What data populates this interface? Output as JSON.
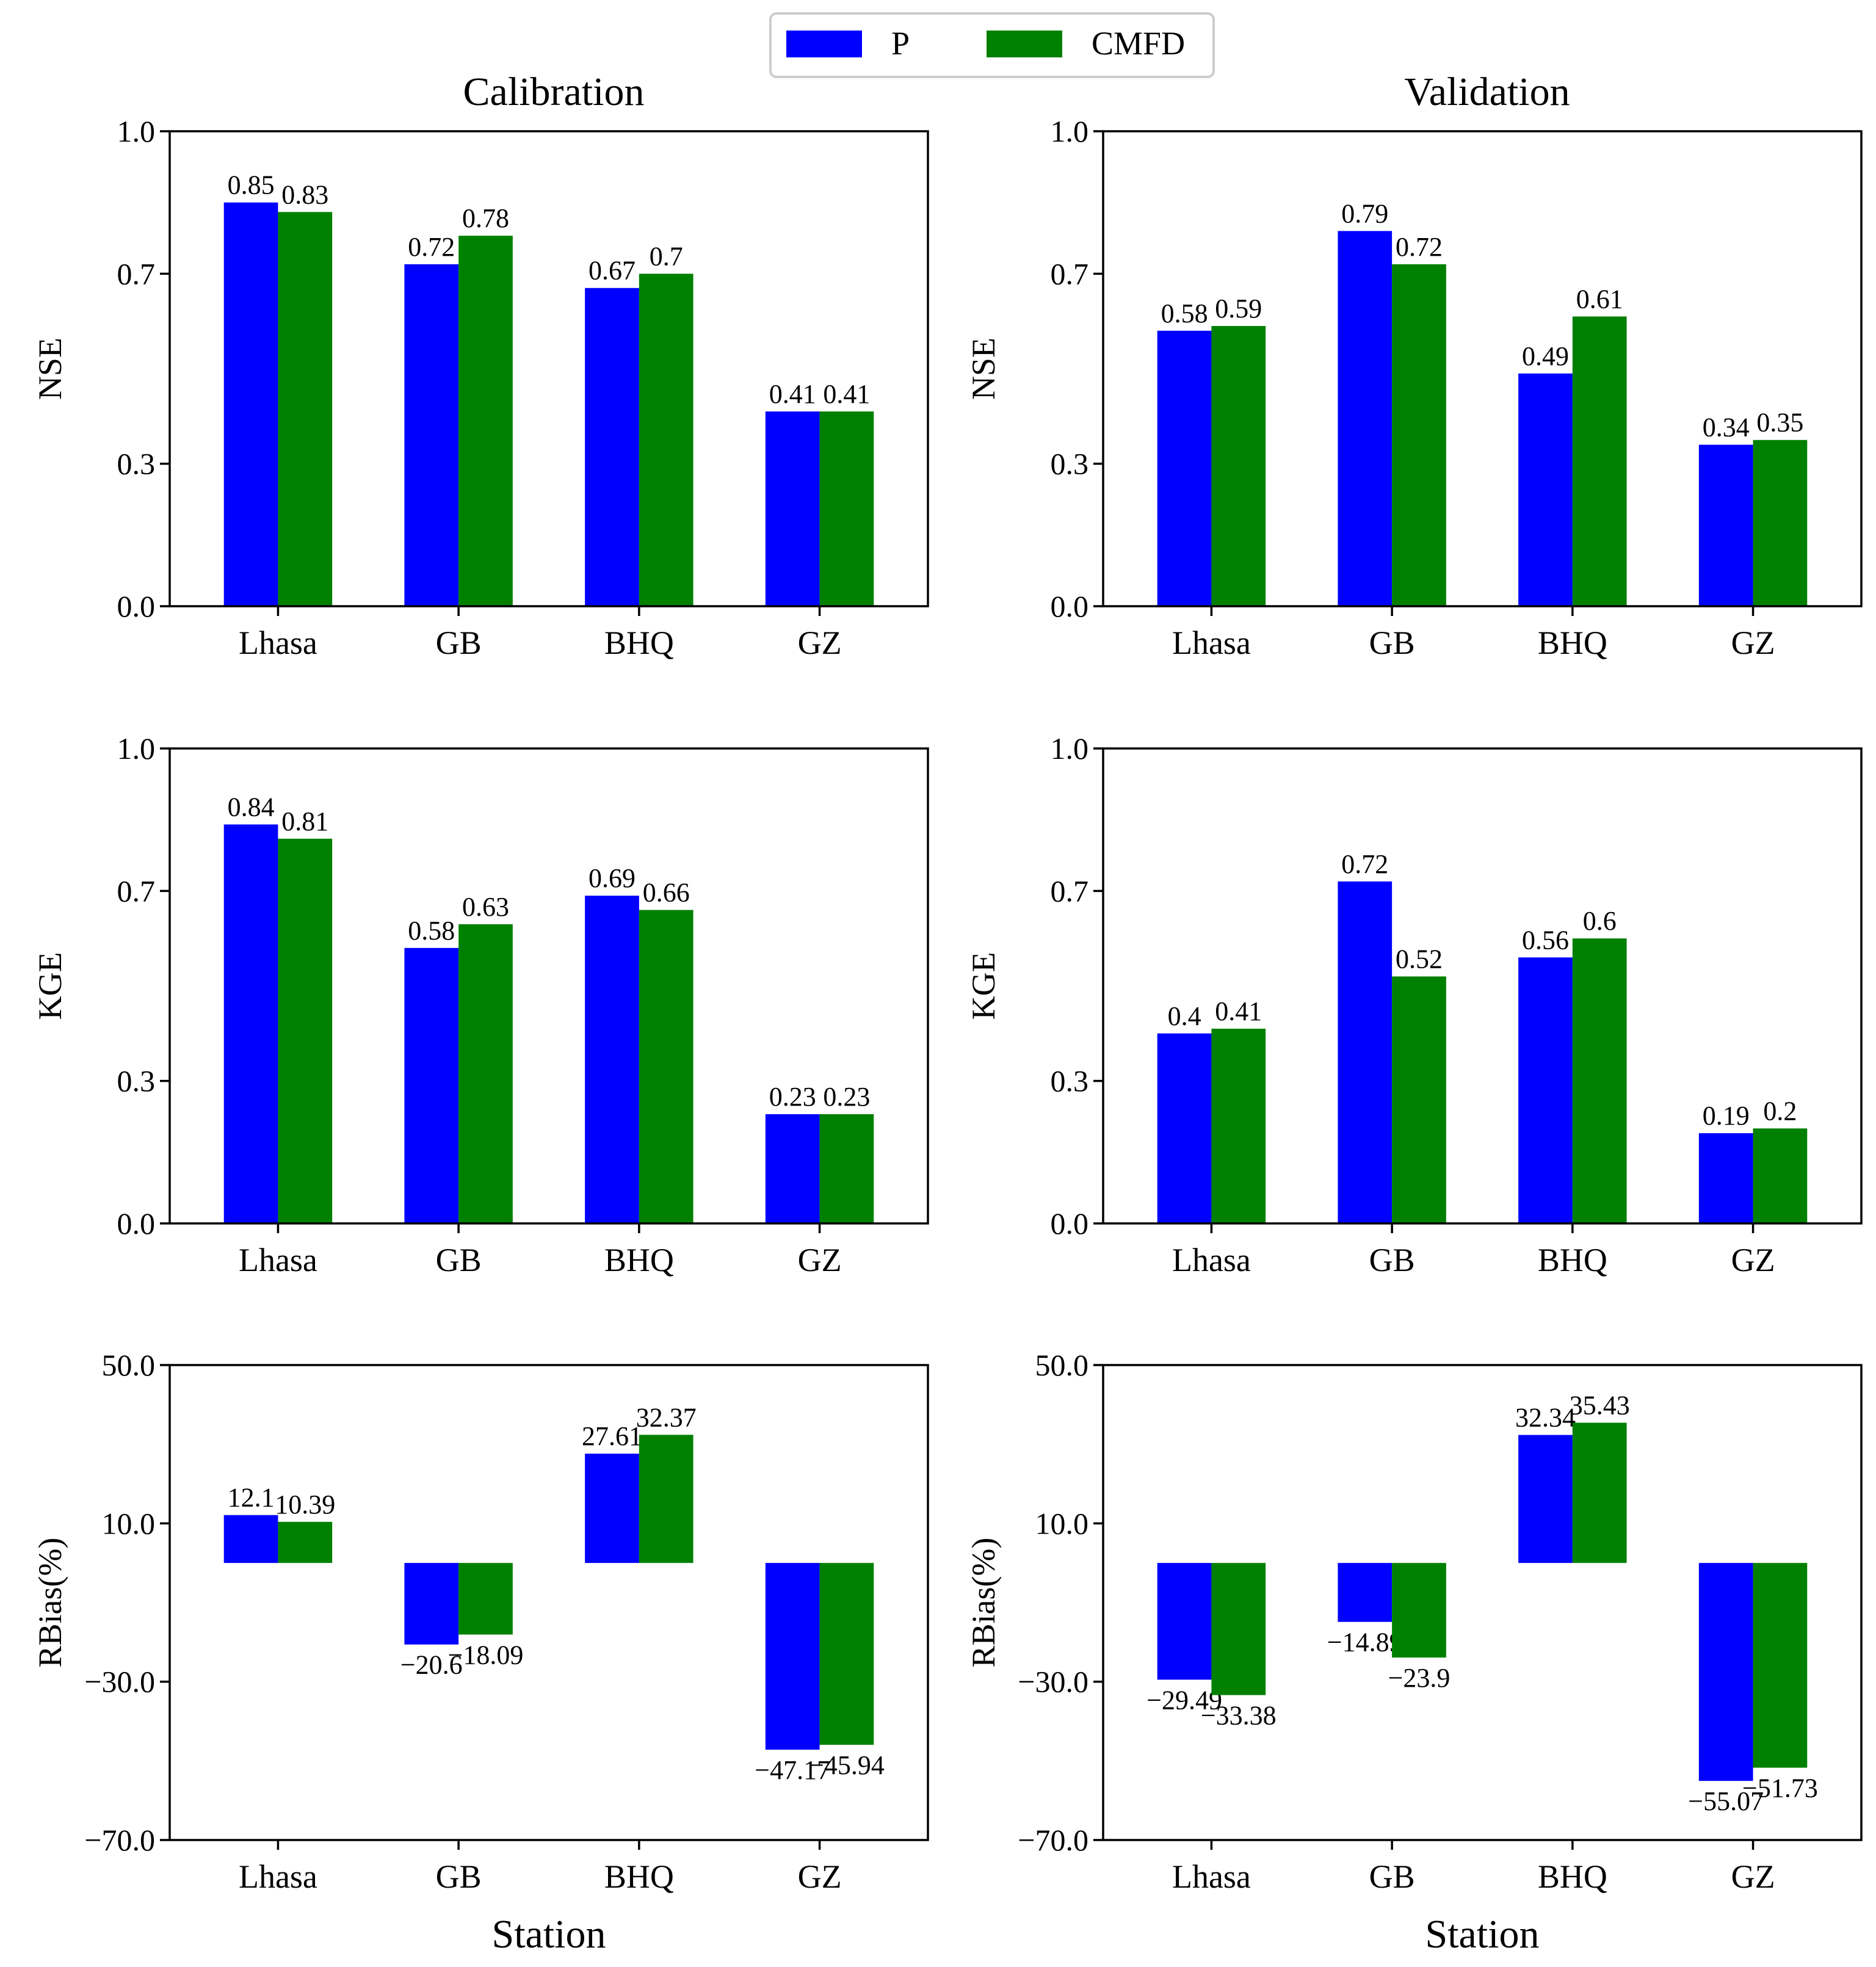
{
  "legend": {
    "entries": [
      {
        "label": "P",
        "color": "#0000ff"
      },
      {
        "label": "CMFD",
        "color": "#008000"
      }
    ]
  },
  "columns": {
    "left_title": "Calibration",
    "right_title": "Validation"
  },
  "x_axis_label": "Station",
  "chart_data": [
    {
      "id": "cal-nse",
      "type": "bar",
      "column_title": "Calibration",
      "categories": [
        "Lhasa",
        "GB",
        "BHQ",
        "GZ"
      ],
      "series": [
        {
          "name": "P",
          "values": [
            0.85,
            0.72,
            0.67,
            0.41
          ],
          "labels": [
            "0.85",
            "0.72",
            "0.67",
            "0.41"
          ]
        },
        {
          "name": "CMFD",
          "values": [
            0.83,
            0.78,
            0.7,
            0.41
          ],
          "labels": [
            "0.83",
            "0.78",
            "0.7",
            "0.41"
          ]
        }
      ],
      "ylabel": "NSE",
      "xlabel": "",
      "ylim": [
        0.0,
        1.0
      ],
      "yticks": [
        0.0,
        0.3,
        0.7,
        1.0
      ],
      "ytick_labels": [
        "0.0",
        "0.3",
        "0.7",
        "1.0"
      ]
    },
    {
      "id": "val-nse",
      "type": "bar",
      "column_title": "Validation",
      "categories": [
        "Lhasa",
        "GB",
        "BHQ",
        "GZ"
      ],
      "series": [
        {
          "name": "P",
          "values": [
            0.58,
            0.79,
            0.49,
            0.34
          ],
          "labels": [
            "0.58",
            "0.79",
            "0.49",
            "0.34"
          ]
        },
        {
          "name": "CMFD",
          "values": [
            0.59,
            0.72,
            0.61,
            0.35
          ],
          "labels": [
            "0.59",
            "0.72",
            "0.61",
            "0.35"
          ]
        }
      ],
      "ylabel": "NSE",
      "xlabel": "",
      "ylim": [
        0.0,
        1.0
      ],
      "yticks": [
        0.0,
        0.3,
        0.7,
        1.0
      ],
      "ytick_labels": [
        "0.0",
        "0.3",
        "0.7",
        "1.0"
      ]
    },
    {
      "id": "cal-kge",
      "type": "bar",
      "categories": [
        "Lhasa",
        "GB",
        "BHQ",
        "GZ"
      ],
      "series": [
        {
          "name": "P",
          "values": [
            0.84,
            0.58,
            0.69,
            0.23
          ],
          "labels": [
            "0.84",
            "0.58",
            "0.69",
            "0.23"
          ]
        },
        {
          "name": "CMFD",
          "values": [
            0.81,
            0.63,
            0.66,
            0.23
          ],
          "labels": [
            "0.81",
            "0.63",
            "0.66",
            "0.23"
          ]
        }
      ],
      "ylabel": "KGE",
      "xlabel": "",
      "ylim": [
        0.0,
        1.0
      ],
      "yticks": [
        0.0,
        0.3,
        0.7,
        1.0
      ],
      "ytick_labels": [
        "0.0",
        "0.3",
        "0.7",
        "1.0"
      ]
    },
    {
      "id": "val-kge",
      "type": "bar",
      "categories": [
        "Lhasa",
        "GB",
        "BHQ",
        "GZ"
      ],
      "series": [
        {
          "name": "P",
          "values": [
            0.4,
            0.72,
            0.56,
            0.19
          ],
          "labels": [
            "0.4",
            "0.72",
            "0.56",
            "0.19"
          ]
        },
        {
          "name": "CMFD",
          "values": [
            0.41,
            0.52,
            0.6,
            0.2
          ],
          "labels": [
            "0.41",
            "0.52",
            "0.6",
            "0.2"
          ]
        }
      ],
      "ylabel": "KGE",
      "xlabel": "",
      "ylim": [
        0.0,
        1.0
      ],
      "yticks": [
        0.0,
        0.3,
        0.7,
        1.0
      ],
      "ytick_labels": [
        "0.0",
        "0.3",
        "0.7",
        "1.0"
      ]
    },
    {
      "id": "cal-rbias",
      "type": "bar",
      "categories": [
        "Lhasa",
        "GB",
        "BHQ",
        "GZ"
      ],
      "series": [
        {
          "name": "P",
          "values": [
            12.1,
            -20.6,
            27.61,
            -47.17
          ],
          "labels": [
            "12.1",
            "−20.6",
            "27.61",
            "−47.17"
          ]
        },
        {
          "name": "CMFD",
          "values": [
            10.39,
            -18.09,
            32.37,
            -45.94
          ],
          "labels": [
            "10.39",
            "−18.09",
            "32.37",
            "−45.94"
          ]
        }
      ],
      "ylabel": "RBias(%)",
      "xlabel": "Station",
      "ylim": [
        -70.0,
        50.0
      ],
      "yticks": [
        -70.0,
        -30.0,
        10.0,
        50.0
      ],
      "ytick_labels": [
        "−70.0",
        "−30.0",
        "10.0",
        "50.0"
      ]
    },
    {
      "id": "val-rbias",
      "type": "bar",
      "categories": [
        "Lhasa",
        "GB",
        "BHQ",
        "GZ"
      ],
      "series": [
        {
          "name": "P",
          "values": [
            -29.49,
            -14.89,
            32.34,
            -55.07
          ],
          "labels": [
            "−29.49",
            "−14.89",
            "32.34",
            "−55.07"
          ]
        },
        {
          "name": "CMFD",
          "values": [
            -33.38,
            -23.9,
            35.43,
            -51.73
          ],
          "labels": [
            "−33.38",
            "−23.9",
            "35.43",
            "−51.73"
          ]
        }
      ],
      "ylabel": "RBias(%)",
      "xlabel": "Station",
      "ylim": [
        -70.0,
        50.0
      ],
      "yticks": [
        -70.0,
        -30.0,
        10.0,
        50.0
      ],
      "ytick_labels": [
        "−70.0",
        "−30.0",
        "10.0",
        "50.0"
      ]
    }
  ]
}
